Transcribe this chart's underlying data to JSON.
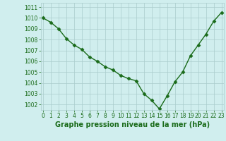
{
  "x": [
    0,
    1,
    2,
    3,
    4,
    5,
    6,
    7,
    8,
    9,
    10,
    11,
    12,
    13,
    14,
    15,
    16,
    17,
    18,
    19,
    20,
    21,
    22,
    23
  ],
  "y": [
    1010.0,
    1009.6,
    1009.0,
    1008.1,
    1007.5,
    1007.1,
    1006.4,
    1006.0,
    1005.5,
    1005.2,
    1004.7,
    1004.4,
    1004.2,
    1003.0,
    1002.4,
    1001.6,
    1002.8,
    1004.1,
    1005.0,
    1006.5,
    1007.5,
    1008.5,
    1009.7,
    1010.5
  ],
  "line_color": "#1a6b1a",
  "marker": "D",
  "marker_size": 2.5,
  "bg_color": "#d0eeee",
  "grid_color": "#aacccc",
  "title": "Graphe pression niveau de la mer (hPa)",
  "title_color": "#1a6b1a",
  "title_fontsize": 7,
  "ylim": [
    1001.5,
    1011.4
  ],
  "yticks": [
    1002,
    1003,
    1004,
    1005,
    1006,
    1007,
    1008,
    1009,
    1010,
    1011
  ],
  "xticks": [
    0,
    1,
    2,
    3,
    4,
    5,
    6,
    7,
    8,
    9,
    10,
    11,
    12,
    13,
    14,
    15,
    16,
    17,
    18,
    19,
    20,
    21,
    22,
    23
  ],
  "tick_color": "#1a6b1a",
  "tick_fontsize": 5.5,
  "line_width": 1.0,
  "xlim": [
    -0.3,
    23.3
  ]
}
